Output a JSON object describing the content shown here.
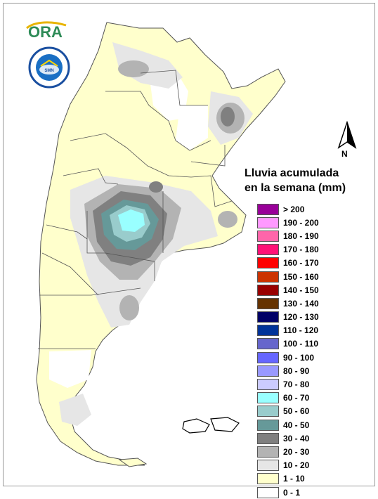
{
  "header": {
    "logo_text": "ORA",
    "seal_text": "SERVICIO METEOROLOGICO NACIONAL ARGENTINA"
  },
  "north_arrow": {
    "label": "N"
  },
  "legend": {
    "title_line1": "Lluvia acumulada",
    "title_line2": "en la semana (mm)",
    "items": [
      {
        "label": "> 200",
        "color": "#990099"
      },
      {
        "label": "190 - 200",
        "color": "#ff99ff"
      },
      {
        "label": "180 - 190",
        "color": "#ff66aa"
      },
      {
        "label": "170 - 180",
        "color": "#ff1177"
      },
      {
        "label": "160 - 170",
        "color": "#ff0000"
      },
      {
        "label": "150 - 160",
        "color": "#cc3300"
      },
      {
        "label": "140 - 150",
        "color": "#990000"
      },
      {
        "label": "130 - 140",
        "color": "#663300"
      },
      {
        "label": "120 - 130",
        "color": "#000066"
      },
      {
        "label": "110 - 120",
        "color": "#003399"
      },
      {
        "label": "100 - 110",
        "color": "#6666cc"
      },
      {
        "label": "90 - 100",
        "color": "#6666ff"
      },
      {
        "label": "80 - 90",
        "color": "#9999ff"
      },
      {
        "label": "70 - 80",
        "color": "#ccccff"
      },
      {
        "label": "60 - 70",
        "color": "#99ffff"
      },
      {
        "label": "50 - 60",
        "color": "#99cccc"
      },
      {
        "label": "40 - 50",
        "color": "#669999"
      },
      {
        "label": "30 - 40",
        "color": "#808080"
      },
      {
        "label": "20 - 30",
        "color": "#b3b3b3"
      },
      {
        "label": "10 - 20",
        "color": "#e6e6e6"
      },
      {
        "label": "1 - 10",
        "color": "#ffffcc"
      },
      {
        "label": "0 - 1",
        "color": "#ffffff"
      }
    ]
  }
}
